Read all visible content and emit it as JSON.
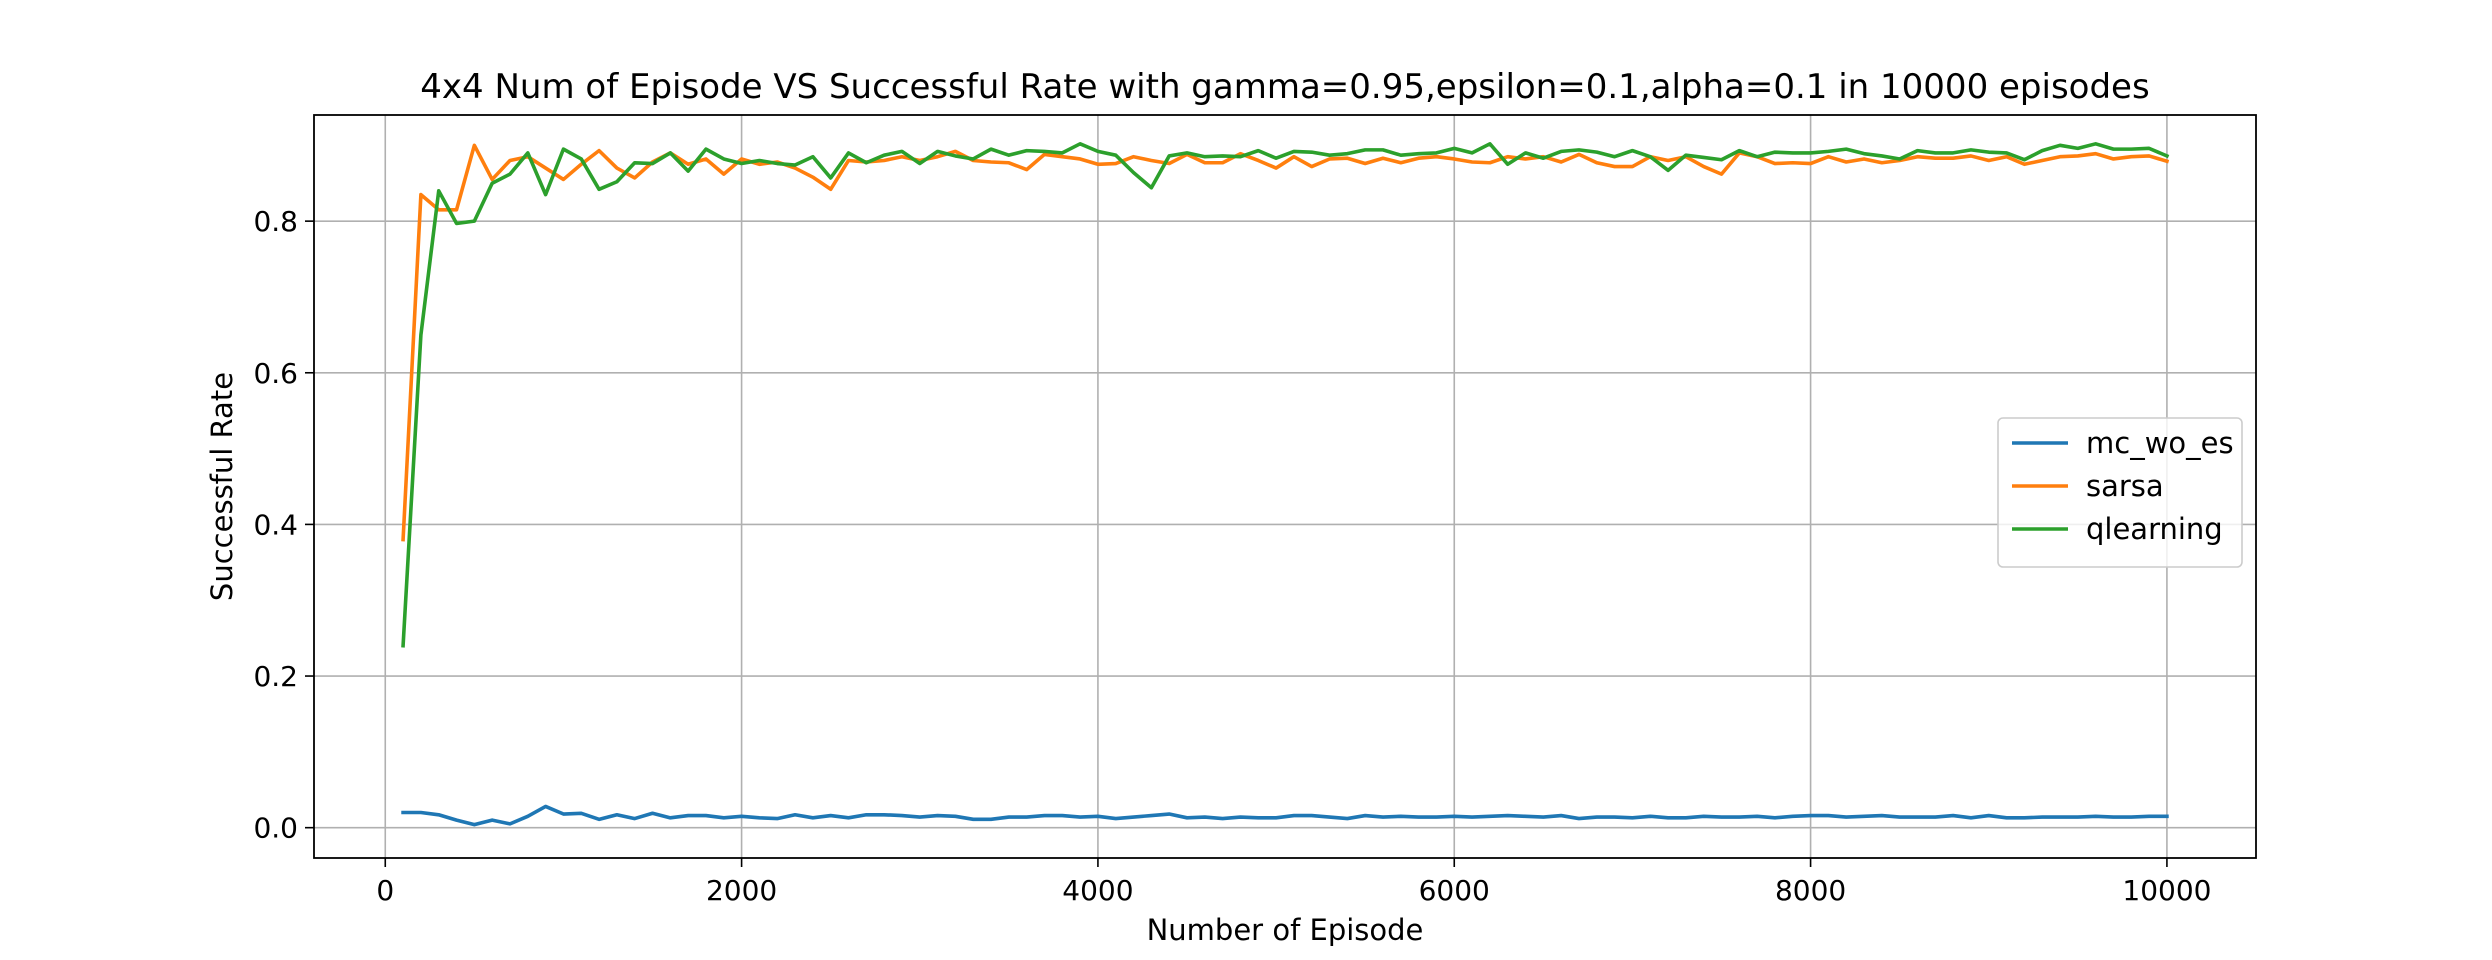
{
  "chart_data": {
    "type": "line",
    "title": "4x4 Num of Episode VS Successful Rate with gamma=0.95,epsilon=0.1,alpha=0.1 in 10000 episodes",
    "xlabel": "Number of Episode",
    "ylabel": "Successful Rate",
    "xlim": [
      -400,
      10500
    ],
    "ylim": [
      -0.04,
      0.94
    ],
    "xticks": [
      0,
      2000,
      4000,
      6000,
      8000,
      10000
    ],
    "yticks": [
      0.0,
      0.2,
      0.4,
      0.6,
      0.8
    ],
    "xtick_labels": [
      "0",
      "2000",
      "4000",
      "6000",
      "8000",
      "10000"
    ],
    "ytick_labels": [
      "0.0",
      "0.2",
      "0.4",
      "0.6",
      "0.8"
    ],
    "grid": true,
    "legend_position": "center-right",
    "x_start": 100,
    "x_step": 100,
    "series": [
      {
        "name": "mc_wo_es",
        "color": "#1f77b4",
        "values": [
          0.02,
          0.02,
          0.017,
          0.01,
          0.004,
          0.01,
          0.005,
          0.015,
          0.028,
          0.018,
          0.019,
          0.011,
          0.017,
          0.012,
          0.019,
          0.013,
          0.016,
          0.016,
          0.013,
          0.015,
          0.013,
          0.012,
          0.017,
          0.013,
          0.016,
          0.013,
          0.017,
          0.017,
          0.016,
          0.014,
          0.016,
          0.015,
          0.011,
          0.011,
          0.014,
          0.014,
          0.016,
          0.016,
          0.014,
          0.015,
          0.012,
          0.014,
          0.016,
          0.018,
          0.013,
          0.014,
          0.012,
          0.014,
          0.013,
          0.013,
          0.016,
          0.016,
          0.014,
          0.012,
          0.016,
          0.014,
          0.015,
          0.014,
          0.014,
          0.015,
          0.014,
          0.015,
          0.016,
          0.015,
          0.014,
          0.016,
          0.012,
          0.014,
          0.014,
          0.013,
          0.015,
          0.013,
          0.013,
          0.015,
          0.014,
          0.014,
          0.015,
          0.013,
          0.015,
          0.016,
          0.016,
          0.014,
          0.015,
          0.016,
          0.014,
          0.014,
          0.014,
          0.016,
          0.013,
          0.016,
          0.013,
          0.013,
          0.014,
          0.014,
          0.014,
          0.015,
          0.014,
          0.014,
          0.015,
          0.015
        ]
      },
      {
        "name": "sarsa",
        "color": "#ff7f0e",
        "values": [
          0.38,
          0.835,
          0.815,
          0.815,
          0.9,
          0.855,
          0.88,
          0.885,
          0.87,
          0.855,
          0.875,
          0.893,
          0.87,
          0.857,
          0.878,
          0.89,
          0.875,
          0.882,
          0.862,
          0.882,
          0.875,
          0.878,
          0.87,
          0.858,
          0.842,
          0.88,
          0.878,
          0.88,
          0.885,
          0.88,
          0.885,
          0.892,
          0.88,
          0.878,
          0.877,
          0.868,
          0.888,
          0.885,
          0.882,
          0.875,
          0.876,
          0.885,
          0.88,
          0.876,
          0.888,
          0.877,
          0.877,
          0.889,
          0.88,
          0.87,
          0.885,
          0.872,
          0.882,
          0.883,
          0.876,
          0.883,
          0.877,
          0.883,
          0.885,
          0.882,
          0.878,
          0.877,
          0.885,
          0.882,
          0.885,
          0.878,
          0.888,
          0.877,
          0.872,
          0.872,
          0.885,
          0.88,
          0.885,
          0.872,
          0.862,
          0.89,
          0.885,
          0.876,
          0.877,
          0.876,
          0.885,
          0.878,
          0.882,
          0.877,
          0.88,
          0.885,
          0.883,
          0.883,
          0.886,
          0.88,
          0.885,
          0.875,
          0.88,
          0.885,
          0.886,
          0.889,
          0.882,
          0.885,
          0.886,
          0.879
        ]
      },
      {
        "name": "qlearning",
        "color": "#2ca02c",
        "values": [
          0.24,
          0.65,
          0.84,
          0.797,
          0.8,
          0.85,
          0.862,
          0.89,
          0.835,
          0.895,
          0.882,
          0.842,
          0.852,
          0.877,
          0.876,
          0.89,
          0.866,
          0.895,
          0.882,
          0.876,
          0.88,
          0.876,
          0.874,
          0.885,
          0.857,
          0.89,
          0.877,
          0.887,
          0.892,
          0.876,
          0.892,
          0.886,
          0.882,
          0.895,
          0.887,
          0.893,
          0.892,
          0.89,
          0.902,
          0.892,
          0.887,
          0.864,
          0.844,
          0.886,
          0.89,
          0.885,
          0.886,
          0.885,
          0.893,
          0.883,
          0.892,
          0.891,
          0.887,
          0.889,
          0.894,
          0.894,
          0.887,
          0.889,
          0.89,
          0.896,
          0.89,
          0.902,
          0.875,
          0.89,
          0.883,
          0.892,
          0.894,
          0.891,
          0.885,
          0.893,
          0.885,
          0.867,
          0.887,
          0.884,
          0.881,
          0.893,
          0.885,
          0.891,
          0.89,
          0.89,
          0.892,
          0.895,
          0.889,
          0.886,
          0.882,
          0.893,
          0.89,
          0.89,
          0.894,
          0.891,
          0.89,
          0.881,
          0.893,
          0.9,
          0.896,
          0.902,
          0.895,
          0.895,
          0.896,
          0.886
        ]
      }
    ]
  }
}
